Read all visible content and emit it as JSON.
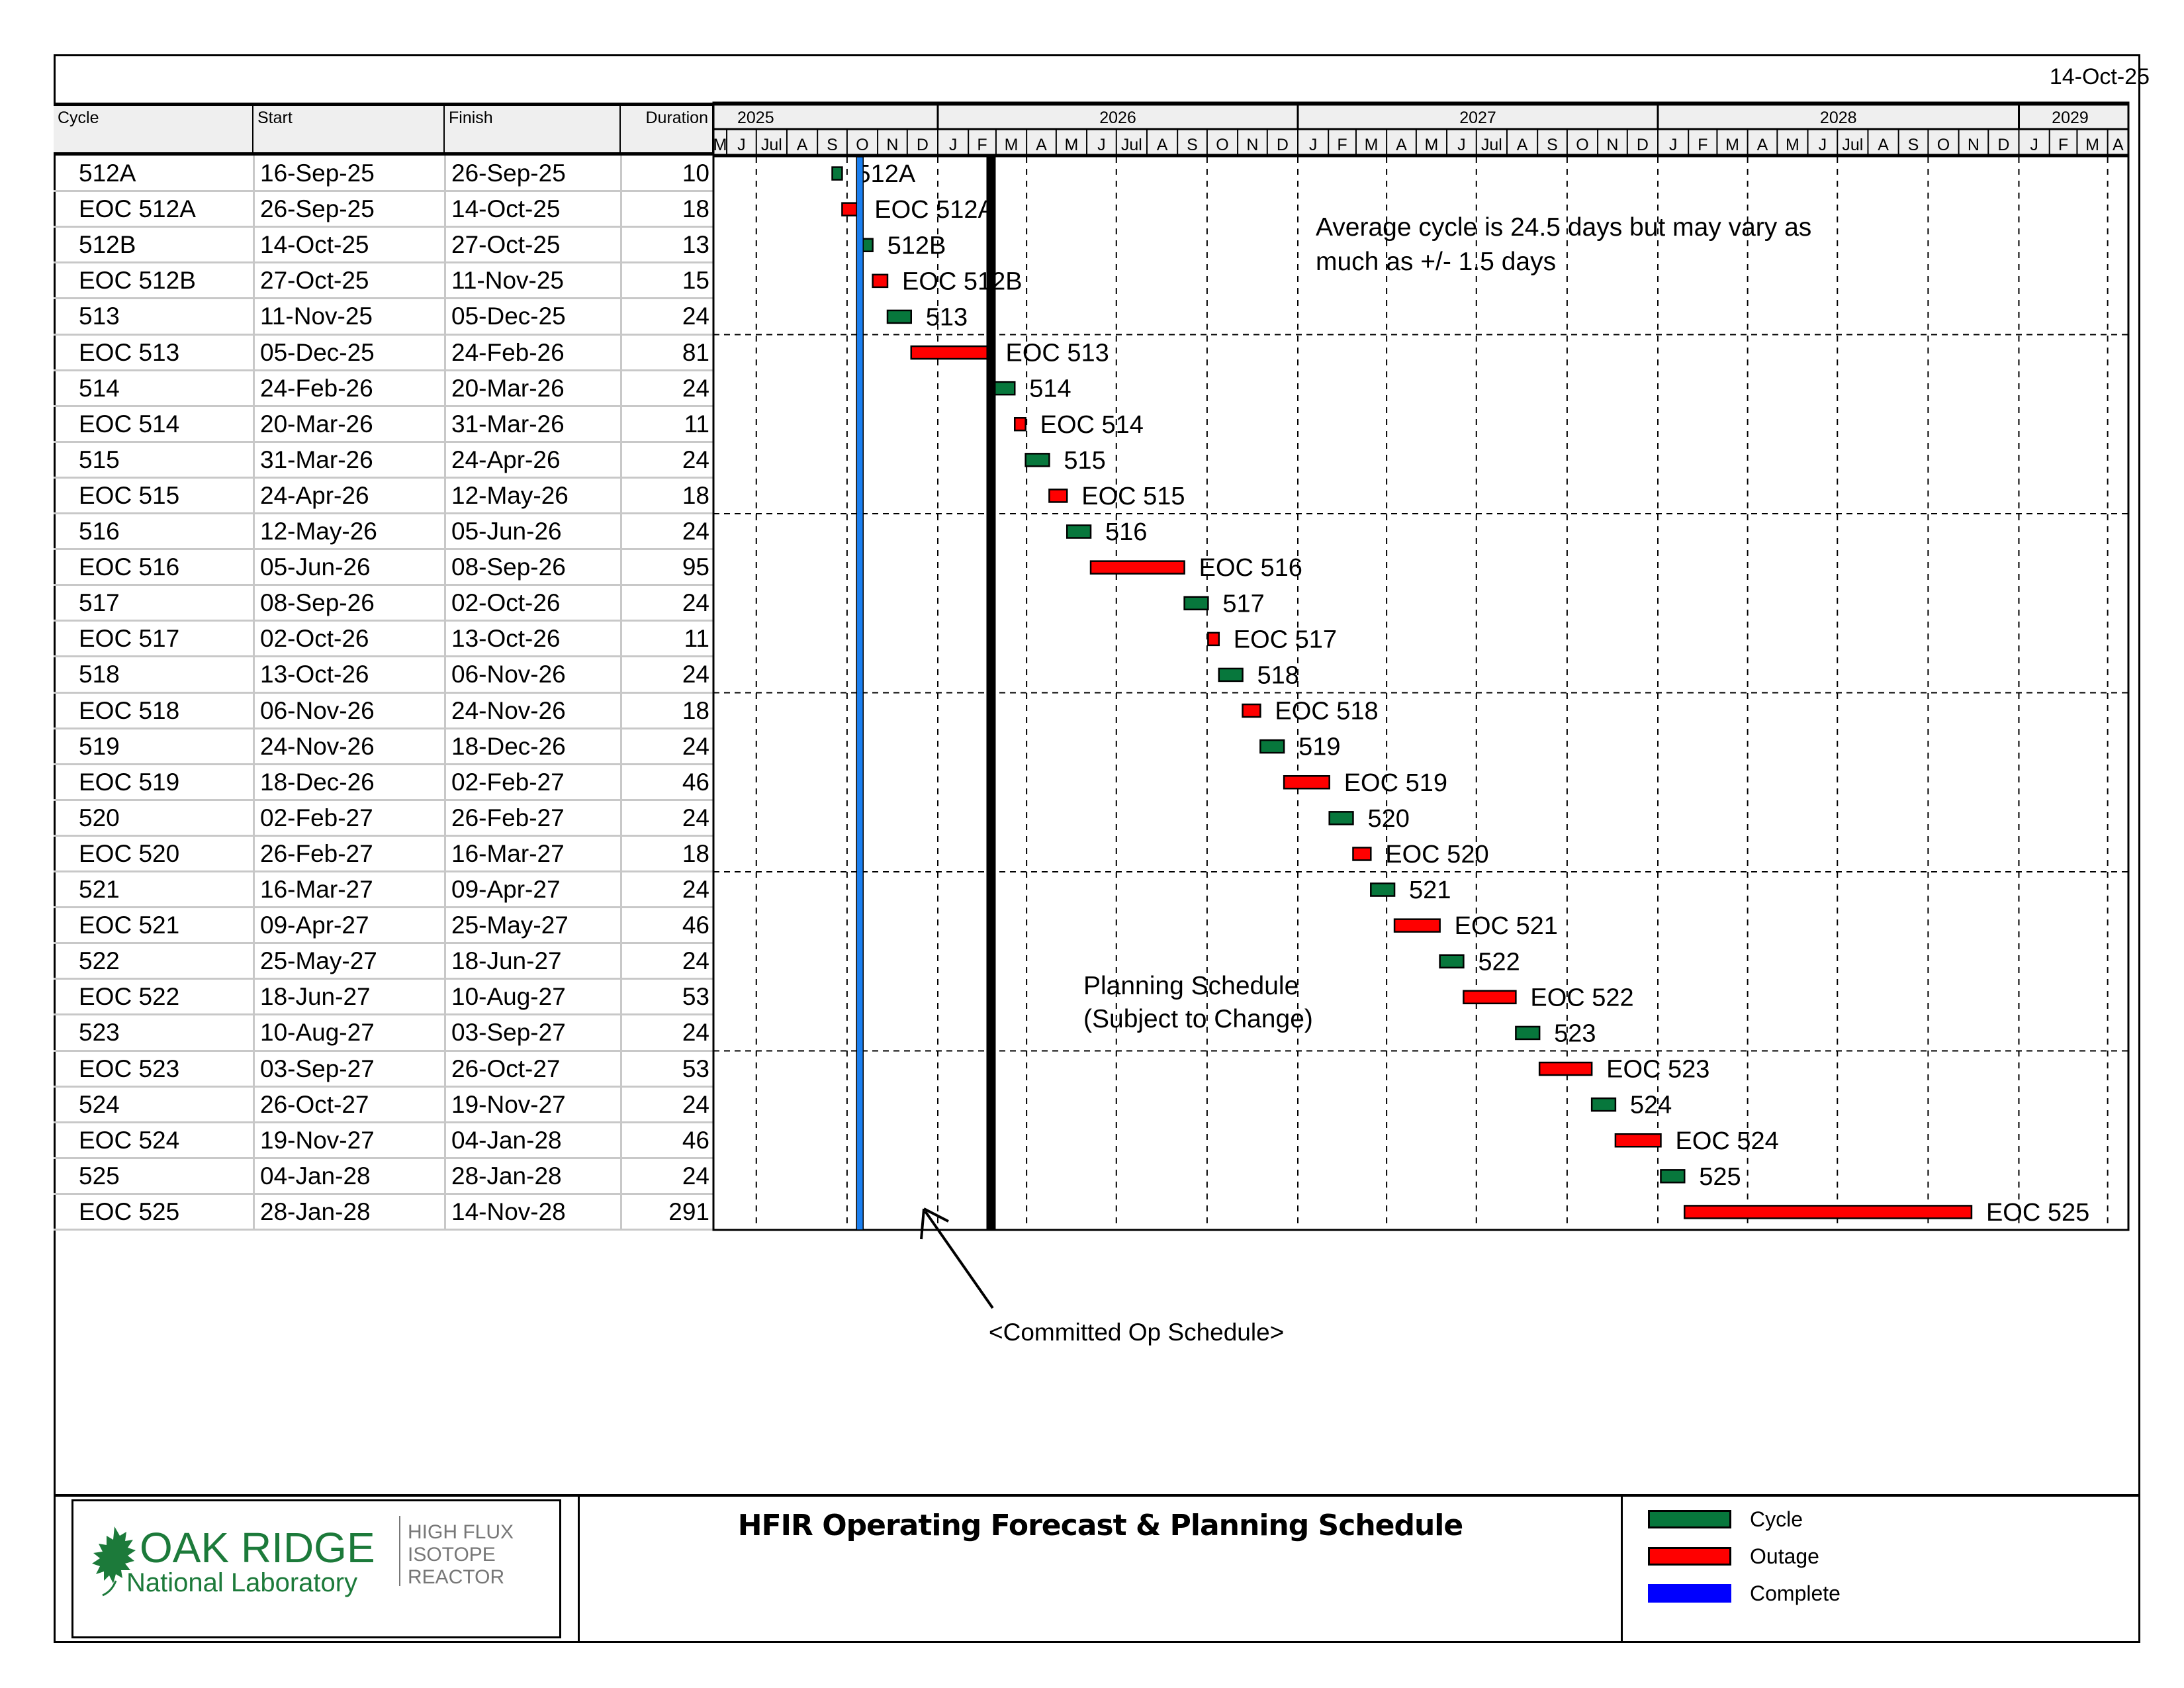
{
  "report_date": "14-Oct-25",
  "table": {
    "headers": {
      "cycle": "Cycle",
      "start": "Start",
      "finish": "Finish",
      "duration": "Duration"
    },
    "rows": [
      {
        "cycle": "512A",
        "start": "16-Sep-25",
        "finish": "26-Sep-25",
        "duration": "10",
        "type": "cycle"
      },
      {
        "cycle": "EOC 512A",
        "start": "26-Sep-25",
        "finish": "14-Oct-25",
        "duration": "18",
        "type": "outage"
      },
      {
        "cycle": "512B",
        "start": "14-Oct-25",
        "finish": "27-Oct-25",
        "duration": "13",
        "type": "cycle"
      },
      {
        "cycle": "EOC 512B",
        "start": "27-Oct-25",
        "finish": "11-Nov-25",
        "duration": "15",
        "type": "outage"
      },
      {
        "cycle": "513",
        "start": "11-Nov-25",
        "finish": "05-Dec-25",
        "duration": "24",
        "type": "cycle"
      },
      {
        "cycle": "EOC 513",
        "start": "05-Dec-25",
        "finish": "24-Feb-26",
        "duration": "81",
        "type": "outage"
      },
      {
        "cycle": "514",
        "start": "24-Feb-26",
        "finish": "20-Mar-26",
        "duration": "24",
        "type": "cycle"
      },
      {
        "cycle": "EOC 514",
        "start": "20-Mar-26",
        "finish": "31-Mar-26",
        "duration": "11",
        "type": "outage"
      },
      {
        "cycle": "515",
        "start": "31-Mar-26",
        "finish": "24-Apr-26",
        "duration": "24",
        "type": "cycle"
      },
      {
        "cycle": "EOC 515",
        "start": "24-Apr-26",
        "finish": "12-May-26",
        "duration": "18",
        "type": "outage"
      },
      {
        "cycle": "516",
        "start": "12-May-26",
        "finish": "05-Jun-26",
        "duration": "24",
        "type": "cycle"
      },
      {
        "cycle": "EOC 516",
        "start": "05-Jun-26",
        "finish": "08-Sep-26",
        "duration": "95",
        "type": "outage"
      },
      {
        "cycle": "517",
        "start": "08-Sep-26",
        "finish": "02-Oct-26",
        "duration": "24",
        "type": "cycle"
      },
      {
        "cycle": "EOC 517",
        "start": "02-Oct-26",
        "finish": "13-Oct-26",
        "duration": "11",
        "type": "outage"
      },
      {
        "cycle": "518",
        "start": "13-Oct-26",
        "finish": "06-Nov-26",
        "duration": "24",
        "type": "cycle"
      },
      {
        "cycle": "EOC 518",
        "start": "06-Nov-26",
        "finish": "24-Nov-26",
        "duration": "18",
        "type": "outage"
      },
      {
        "cycle": "519",
        "start": "24-Nov-26",
        "finish": "18-Dec-26",
        "duration": "24",
        "type": "cycle"
      },
      {
        "cycle": "EOC 519",
        "start": "18-Dec-26",
        "finish": "02-Feb-27",
        "duration": "46",
        "type": "outage"
      },
      {
        "cycle": "520",
        "start": "02-Feb-27",
        "finish": "26-Feb-27",
        "duration": "24",
        "type": "cycle"
      },
      {
        "cycle": "EOC 520",
        "start": "26-Feb-27",
        "finish": "16-Mar-27",
        "duration": "18",
        "type": "outage"
      },
      {
        "cycle": "521",
        "start": "16-Mar-27",
        "finish": "09-Apr-27",
        "duration": "24",
        "type": "cycle"
      },
      {
        "cycle": "EOC 521",
        "start": "09-Apr-27",
        "finish": "25-May-27",
        "duration": "46",
        "type": "outage"
      },
      {
        "cycle": "522",
        "start": "25-May-27",
        "finish": "18-Jun-27",
        "duration": "24",
        "type": "cycle"
      },
      {
        "cycle": "EOC 522",
        "start": "18-Jun-27",
        "finish": "10-Aug-27",
        "duration": "53",
        "type": "outage"
      },
      {
        "cycle": "523",
        "start": "10-Aug-27",
        "finish": "03-Sep-27",
        "duration": "24",
        "type": "cycle"
      },
      {
        "cycle": "EOC 523",
        "start": "03-Sep-27",
        "finish": "26-Oct-27",
        "duration": "53",
        "type": "outage"
      },
      {
        "cycle": "524",
        "start": "26-Oct-27",
        "finish": "19-Nov-27",
        "duration": "24",
        "type": "cycle"
      },
      {
        "cycle": "EOC 524",
        "start": "19-Nov-27",
        "finish": "04-Jan-28",
        "duration": "46",
        "type": "outage"
      },
      {
        "cycle": "525",
        "start": "04-Jan-28",
        "finish": "28-Jan-28",
        "duration": "24",
        "type": "cycle"
      },
      {
        "cycle": "EOC 525",
        "start": "28-Jan-28",
        "finish": "14-Nov-28",
        "duration": "291",
        "type": "outage"
      }
    ]
  },
  "chart_data": {
    "type": "gantt",
    "title": "HFIR Operating Forecast & Planning Schedule",
    "x_range": [
      "2025-05-01",
      "2029-04-15"
    ],
    "years": [
      {
        "label": "2025",
        "start": "2025-05-01",
        "end": "2026-01-01"
      },
      {
        "label": "2026",
        "start": "2026-01-01",
        "end": "2027-01-01"
      },
      {
        "label": "2027",
        "start": "2027-01-01",
        "end": "2028-01-01"
      },
      {
        "label": "2028",
        "start": "2028-01-01",
        "end": "2029-01-01"
      },
      {
        "label": "2029",
        "start": "2029-01-01",
        "end": "2029-04-15"
      }
    ],
    "months": [
      {
        "label": "M",
        "start": "2025-05-01"
      },
      {
        "label": "J",
        "start": "2025-06-01"
      },
      {
        "label": "Jul",
        "start": "2025-07-01"
      },
      {
        "label": "A",
        "start": "2025-08-01"
      },
      {
        "label": "S",
        "start": "2025-09-01"
      },
      {
        "label": "O",
        "start": "2025-10-01"
      },
      {
        "label": "N",
        "start": "2025-11-01"
      },
      {
        "label": "D",
        "start": "2025-12-01"
      },
      {
        "label": "J",
        "start": "2026-01-01"
      },
      {
        "label": "F",
        "start": "2026-02-01"
      },
      {
        "label": "M",
        "start": "2026-03-01"
      },
      {
        "label": "A",
        "start": "2026-04-01"
      },
      {
        "label": "M",
        "start": "2026-05-01"
      },
      {
        "label": "J",
        "start": "2026-06-01"
      },
      {
        "label": "Jul",
        "start": "2026-07-01"
      },
      {
        "label": "A",
        "start": "2026-08-01"
      },
      {
        "label": "S",
        "start": "2026-09-01"
      },
      {
        "label": "O",
        "start": "2026-10-01"
      },
      {
        "label": "N",
        "start": "2026-11-01"
      },
      {
        "label": "D",
        "start": "2026-12-01"
      },
      {
        "label": "J",
        "start": "2027-01-01"
      },
      {
        "label": "F",
        "start": "2027-02-01"
      },
      {
        "label": "M",
        "start": "2027-03-01"
      },
      {
        "label": "A",
        "start": "2027-04-01"
      },
      {
        "label": "M",
        "start": "2027-05-01"
      },
      {
        "label": "J",
        "start": "2027-06-01"
      },
      {
        "label": "Jul",
        "start": "2027-07-01"
      },
      {
        "label": "A",
        "start": "2027-08-01"
      },
      {
        "label": "S",
        "start": "2027-09-01"
      },
      {
        "label": "O",
        "start": "2027-10-01"
      },
      {
        "label": "N",
        "start": "2027-11-01"
      },
      {
        "label": "D",
        "start": "2027-12-01"
      },
      {
        "label": "J",
        "start": "2028-01-01"
      },
      {
        "label": "F",
        "start": "2028-02-01"
      },
      {
        "label": "M",
        "start": "2028-03-01"
      },
      {
        "label": "A",
        "start": "2028-04-01"
      },
      {
        "label": "M",
        "start": "2028-05-01"
      },
      {
        "label": "J",
        "start": "2028-06-01"
      },
      {
        "label": "Jul",
        "start": "2028-07-01"
      },
      {
        "label": "A",
        "start": "2028-08-01"
      },
      {
        "label": "S",
        "start": "2028-09-01"
      },
      {
        "label": "O",
        "start": "2028-10-01"
      },
      {
        "label": "N",
        "start": "2028-11-01"
      },
      {
        "label": "D",
        "start": "2028-12-01"
      },
      {
        "label": "J",
        "start": "2029-01-01"
      },
      {
        "label": "F",
        "start": "2029-02-01"
      },
      {
        "label": "M",
        "start": "2029-03-01"
      },
      {
        "label": "A",
        "start": "2029-04-01"
      }
    ],
    "complete_line_date": "2025-10-14",
    "committed_line_date": "2026-02-24",
    "annotations": {
      "average_note": "Average cycle is 24.5 days but may vary as much as +/- 1.5 days",
      "average_note_lines": [
        "Average cycle is 24.5 days but may vary as",
        "much as +/- 1.5 days"
      ],
      "planning_lines": [
        "Planning Schedule",
        "(Subject to Change)"
      ],
      "committed_label": "<Committed Op Schedule>"
    },
    "legend": [
      {
        "label": "Cycle",
        "color": "#07773c"
      },
      {
        "label": "Outage",
        "color": "#ff0000"
      },
      {
        "label": "Complete",
        "color": "#0000ff"
      }
    ],
    "colors": {
      "cycle": "#07773c",
      "outage": "#ff0000",
      "complete_line": "#1a7ff0",
      "committed_line": "#000000",
      "header_bg": "#efefef"
    }
  },
  "footer": {
    "logo": {
      "line1": "OAK RIDGE",
      "line2": "National Laboratory",
      "side": [
        "HIGH FLUX",
        "ISOTOPE",
        "REACTOR"
      ]
    },
    "title": "HFIR Operating Forecast & Planning Schedule"
  }
}
